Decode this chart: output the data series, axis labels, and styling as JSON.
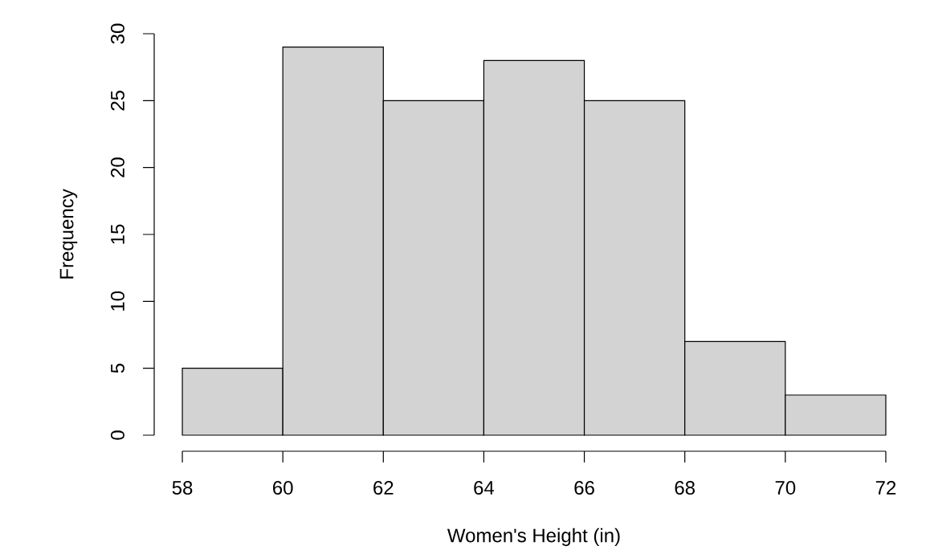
{
  "chart_data": {
    "type": "histogram",
    "xlabel": "Women's Height (in)",
    "ylabel": "Frequency",
    "bins": [
      58,
      60,
      62,
      64,
      66,
      68,
      70,
      72
    ],
    "values": [
      5,
      29,
      25,
      28,
      25,
      7,
      3
    ],
    "color": "#d3d3d3",
    "xlim": [
      58,
      72
    ],
    "ylim": [
      0,
      30
    ],
    "xticks": [
      58,
      60,
      62,
      64,
      66,
      68,
      70,
      72
    ],
    "yticks": [
      0,
      5,
      10,
      15,
      20,
      25,
      30
    ]
  }
}
